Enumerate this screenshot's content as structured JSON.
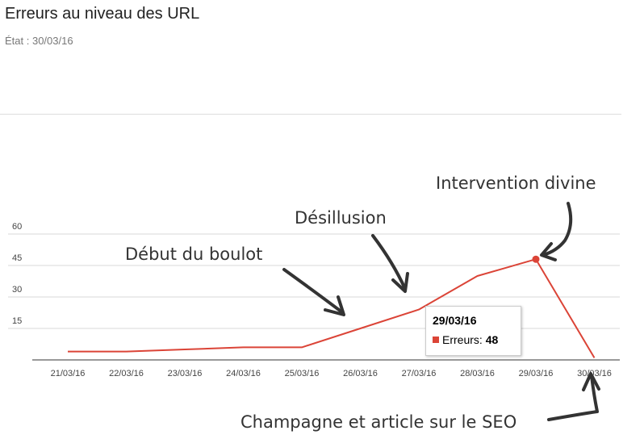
{
  "page": {
    "title": "Erreurs au niveau des URL",
    "status": "État : 30/03/16"
  },
  "chart_data": {
    "type": "line",
    "categories": [
      "21/03/16",
      "22/03/16",
      "23/03/16",
      "24/03/16",
      "25/03/16",
      "26/03/16",
      "27/03/16",
      "28/03/16",
      "29/03/16",
      "30/03/16"
    ],
    "series": [
      {
        "name": "Erreurs",
        "values": [
          4,
          4,
          5,
          6,
          6,
          15,
          24,
          40,
          48,
          1
        ]
      }
    ],
    "yticks": [
      "15",
      "30",
      "45",
      "60"
    ],
    "ylim": [
      0,
      60
    ],
    "grid": true,
    "line_color": "#db4437",
    "highlighted_index": 8,
    "tooltip": {
      "date": "29/03/16",
      "label": "Erreurs:",
      "value": "48"
    },
    "annotations": [
      {
        "text": "Début du boulot",
        "points_to": "26/03/16"
      },
      {
        "text": "Désillusion",
        "points_to": "27/03/16"
      },
      {
        "text": "Intervention divine",
        "points_to": "29/03/16"
      },
      {
        "text": "Champagne et article sur le SEO",
        "points_to": "30/03/16"
      }
    ]
  }
}
